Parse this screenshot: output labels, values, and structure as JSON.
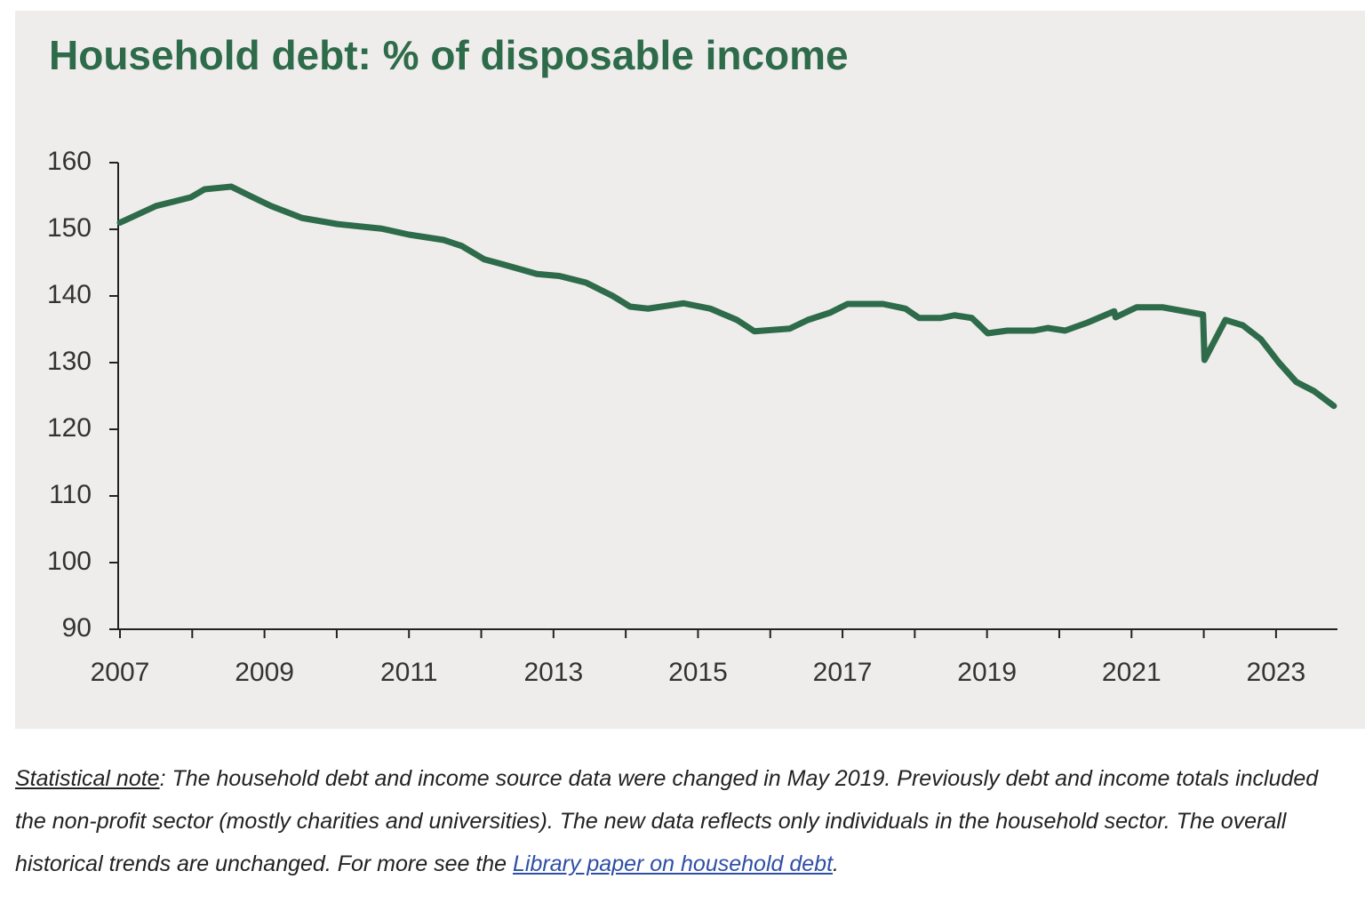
{
  "chart_data": {
    "type": "line",
    "title": "Household debt: % of disposable income",
    "series": [
      {
        "name": "Household debt",
        "color": "#2e6b4a",
        "x": [
          2007,
          2007.5,
          2007.98,
          2008.17,
          2008.54,
          2008.84,
          2009.09,
          2009.52,
          2010.0,
          2010.44,
          2010.62,
          2011.0,
          2011.48,
          2011.73,
          2012.04,
          2012.28,
          2012.77,
          2013.08,
          2013.45,
          2013.82,
          2014.06,
          2014.31,
          2014.8,
          2015.17,
          2015.54,
          2015.78,
          2016.27,
          2016.52,
          2016.83,
          2017.07,
          2017.56,
          2017.87,
          2018.06,
          2018.36,
          2018.55,
          2018.79,
          2019.01,
          2019.28,
          2019.65,
          2019.84,
          2020.08,
          2020.39,
          2020.76,
          2020.78,
          2021.07,
          2021.43,
          2021.99,
          2022.01,
          2022.3,
          2022.54,
          2022.79,
          2023.04,
          2023.28,
          2023.53,
          2023.8
        ],
        "values": [
          151,
          153.5,
          154.8,
          156,
          156.4,
          154.8,
          153.5,
          151.7,
          150.8,
          150.3,
          150.1,
          149.2,
          148.4,
          147.5,
          145.5,
          144.8,
          143.3,
          143,
          142,
          140,
          138.4,
          138.1,
          138.9,
          138.1,
          136.4,
          134.7,
          135.1,
          136.4,
          137.5,
          138.8,
          138.8,
          138.1,
          136.7,
          136.7,
          137.1,
          136.7,
          134.4,
          134.8,
          134.8,
          135.2,
          134.8,
          136,
          137.7,
          136.8,
          138.3,
          138.3,
          137.2,
          130.4,
          136.4,
          135.6,
          133.5,
          130,
          127.1,
          125.7,
          123.5
        ]
      }
    ],
    "xlim": [
      2007,
      2023.85
    ],
    "xticks": [
      2007,
      2009,
      2011,
      2013,
      2015,
      2017,
      2019,
      2021,
      2023
    ],
    "xticks_minor": [
      2008,
      2010,
      2012,
      2014,
      2016,
      2018,
      2020,
      2022
    ],
    "ylim": [
      90,
      160
    ],
    "yticks": [
      90,
      100,
      110,
      120,
      130,
      140,
      150,
      160
    ],
    "grid": false
  },
  "note": {
    "label": "Statistical note",
    "text": ": The household debt and income source data were changed in May 2019. Previously debt and income totals included the non-profit sector (mostly charities and universities). The new data reflects only individuals in the household sector. The overall historical trends are unchanged. For more see the ",
    "link": "Library paper on household debt",
    "end": "."
  }
}
